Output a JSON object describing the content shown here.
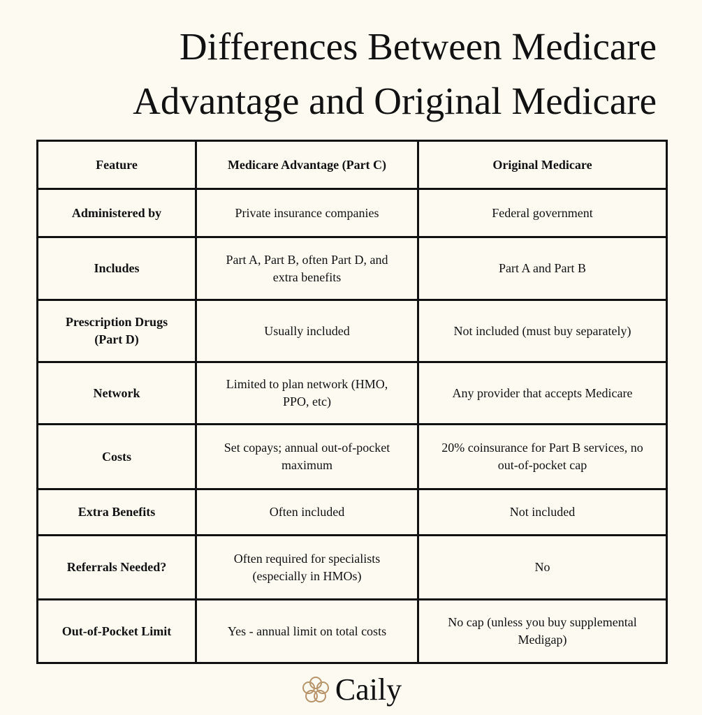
{
  "header": {
    "title": [
      "Differences Between Medicare",
      "Advantage and Original Medicare"
    ]
  },
  "table": {
    "columns": [
      "Feature",
      "Medicare Advantage (Part C)",
      "Original Medicare"
    ],
    "rows": [
      [
        "Administered by",
        "Private insurance companies",
        "Federal government"
      ],
      [
        "Includes",
        "Part A, Part B, often Part D, and extra benefits",
        "Part A and Part B"
      ],
      [
        "Prescription Drugs (Part D)",
        "Usually included",
        "Not included (must buy separately)"
      ],
      [
        "Network",
        "Limited to plan network (HMO, PPO, etc)",
        "Any provider that accepts Medicare"
      ],
      [
        "Costs",
        "Set copays; annual out-of-pocket maximum",
        "20% coinsurance for Part B services, no out-of-pocket cap"
      ],
      [
        "Extra Benefits",
        "Often included",
        "Not included"
      ],
      [
        "Referrals Needed?",
        "Often required for specialists (especially in HMOs)",
        "No"
      ],
      [
        "Out-of-Pocket Limit",
        "Yes - annual limit on total costs",
        "No cap (unless you buy supplemental Medigap)"
      ]
    ]
  },
  "footer": {
    "brand": "Caily"
  }
}
